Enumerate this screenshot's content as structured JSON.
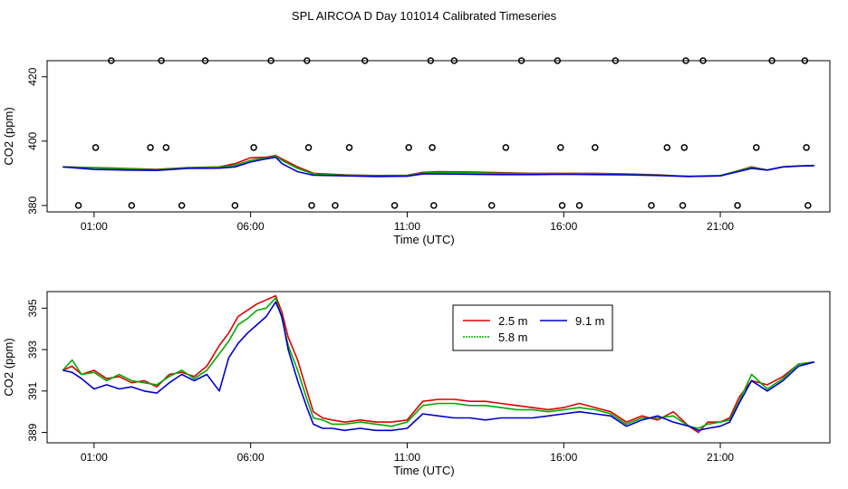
{
  "title": "SPL AIRCOA D  Day 101014  Calibrated Timeseries",
  "colors": {
    "s25": "#dd0000",
    "s58": "#00aa00",
    "s91": "#0000cc",
    "axis": "#000000",
    "points": "#000000"
  },
  "chart_data": [
    {
      "type": "line",
      "panel": "top",
      "xlabel": "Time (UTC)",
      "ylabel": "CO2 (ppm)",
      "xlim": [
        -0.5,
        24.5
      ],
      "ylim": [
        378,
        425
      ],
      "x_ticks": [
        1,
        6,
        11,
        16,
        21
      ],
      "x_tick_labels": [
        "01:00",
        "06:00",
        "11:00",
        "16:00",
        "21:00"
      ],
      "y_ticks": [
        380,
        400,
        420
      ],
      "y_tick_labels": [
        "380",
        "400",
        "420"
      ],
      "series": [
        {
          "name": "2.5 m",
          "color_key": "s25",
          "x": [
            0,
            1,
            2,
            3,
            4,
            5,
            5.5,
            6,
            6.5,
            6.8,
            7,
            7.5,
            8,
            9,
            10,
            11,
            11.5,
            12,
            13,
            14,
            15,
            16,
            17,
            18,
            19,
            20,
            21,
            22,
            22.5,
            23,
            23.5,
            24
          ],
          "values": [
            392,
            391.8,
            391.5,
            391.2,
            391.8,
            392,
            393,
            394.8,
            395,
            395.5,
            394.5,
            392,
            390,
            389.5,
            389.3,
            389.4,
            390.3,
            390.5,
            390.4,
            390.2,
            390,
            390,
            390,
            389.8,
            389.5,
            389,
            389.2,
            392,
            391,
            392,
            392.3,
            392.4
          ]
        },
        {
          "name": "5.8 m",
          "color_key": "s58",
          "x": [
            0,
            1,
            2,
            3,
            4,
            5,
            5.5,
            6,
            6.5,
            6.8,
            7,
            7.5,
            8,
            9,
            10,
            11,
            11.5,
            12,
            13,
            14,
            15,
            16,
            17,
            18,
            19,
            20,
            21,
            22,
            22.5,
            23,
            23.5,
            24
          ],
          "values": [
            392,
            391.7,
            391.4,
            391.1,
            391.7,
            391.9,
            392.5,
            394,
            394.8,
            395.3,
            394,
            391.5,
            389.8,
            389.4,
            389.2,
            389.3,
            390.1,
            390.3,
            390.2,
            390,
            389.9,
            389.9,
            389.9,
            389.7,
            389.4,
            389.1,
            389.3,
            391.8,
            391,
            392,
            392.3,
            392.4
          ]
        },
        {
          "name": "9.1 m",
          "color_key": "s91",
          "x": [
            0,
            1,
            2,
            3,
            4,
            5,
            5.5,
            6,
            6.5,
            6.8,
            7,
            7.5,
            8,
            9,
            10,
            11,
            11.5,
            12,
            13,
            14,
            15,
            16,
            17,
            18,
            19,
            20,
            21,
            22,
            22.5,
            23,
            23.5,
            24
          ],
          "values": [
            392,
            391.2,
            391,
            390.9,
            391.5,
            391.6,
            392,
            393.5,
            394.5,
            395,
            393,
            390.5,
            389.4,
            389.2,
            389,
            389.1,
            389.8,
            389.8,
            389.7,
            389.6,
            389.6,
            389.7,
            389.6,
            389.5,
            389.3,
            389,
            389.2,
            391.5,
            391,
            392,
            392.2,
            392.4
          ]
        }
      ],
      "flag_points": {
        "x": [
          0.5,
          1.05,
          1.55,
          2.2,
          2.8,
          3.15,
          3.3,
          3.8,
          4.55,
          5.5,
          6.1,
          6.65,
          7.8,
          7.85,
          7.95,
          8.7,
          9.15,
          9.65,
          10.6,
          11.05,
          11.75,
          11.8,
          11.85,
          12.5,
          13.7,
          14.15,
          14.65,
          15.8,
          15.9,
          15.95,
          16.5,
          17.0,
          17.65,
          18.8,
          19.3,
          19.8,
          19.85,
          19.9,
          20.45,
          21.55,
          22.15,
          22.65,
          23.7,
          23.75,
          23.8
        ],
        "values": [
          380,
          398,
          425,
          380,
          398,
          425,
          398,
          380,
          425,
          380,
          398,
          425,
          425,
          398,
          380,
          380,
          398,
          425,
          380,
          398,
          425,
          398,
          380,
          425,
          380,
          398,
          425,
          425,
          398,
          380,
          380,
          398,
          425,
          380,
          398,
          380,
          398,
          425,
          425,
          380,
          398,
          425,
          425,
          398,
          380
        ]
      }
    },
    {
      "type": "line",
      "panel": "bottom",
      "xlabel": "Time (UTC)",
      "ylabel": "CO2 (ppm)",
      "xlim": [
        -0.5,
        24.5
      ],
      "ylim": [
        388.5,
        395.8
      ],
      "x_ticks": [
        1,
        6,
        11,
        16,
        21
      ],
      "x_tick_labels": [
        "01:00",
        "06:00",
        "11:00",
        "16:00",
        "21:00"
      ],
      "y_ticks": [
        389,
        391,
        393,
        395
      ],
      "y_tick_labels": [
        "389",
        "391",
        "393",
        "395"
      ],
      "legend": {
        "position": "top-center",
        "entries": [
          "2.5 m",
          "9.1 m",
          "5.8 m"
        ]
      },
      "series": [
        {
          "name": "2.5 m",
          "color_key": "s25",
          "x": [
            0,
            0.3,
            0.6,
            1,
            1.4,
            1.8,
            2.2,
            2.6,
            3,
            3.4,
            3.8,
            4.2,
            4.6,
            5,
            5.3,
            5.6,
            5.9,
            6.2,
            6.5,
            6.8,
            7,
            7.2,
            7.5,
            7.8,
            8,
            8.3,
            8.6,
            9,
            9.5,
            10,
            10.5,
            11,
            11.5,
            12,
            12.5,
            13,
            13.5,
            14,
            14.5,
            15,
            15.5,
            16,
            16.5,
            17,
            17.5,
            18,
            18.5,
            19,
            19.5,
            20,
            20.3,
            20.6,
            21,
            21.3,
            21.6,
            22,
            22.5,
            23,
            23.5,
            24
          ],
          "values": [
            392,
            392.2,
            391.8,
            392,
            391.6,
            391.7,
            391.4,
            391.5,
            391.2,
            391.8,
            391.9,
            391.7,
            392.2,
            393.2,
            393.8,
            394.6,
            394.9,
            395.2,
            395.4,
            395.6,
            394.8,
            393.6,
            392.5,
            391,
            390,
            389.7,
            389.6,
            389.5,
            389.6,
            389.5,
            389.5,
            389.6,
            390.5,
            390.6,
            390.6,
            390.5,
            390.5,
            390.4,
            390.3,
            390.2,
            390.1,
            390.2,
            390.4,
            390.2,
            390,
            389.5,
            389.8,
            389.6,
            390,
            389.3,
            389.0,
            389.5,
            389.5,
            389.7,
            390.7,
            391.5,
            391.3,
            391.7,
            392.3,
            392.4
          ]
        },
        {
          "name": "5.8 m",
          "color_key": "s58",
          "x": [
            0,
            0.3,
            0.6,
            1,
            1.4,
            1.8,
            2.2,
            2.6,
            3,
            3.4,
            3.8,
            4.2,
            4.6,
            5,
            5.3,
            5.6,
            5.9,
            6.2,
            6.5,
            6.8,
            7,
            7.2,
            7.5,
            7.8,
            8,
            8.3,
            8.6,
            9,
            9.5,
            10,
            10.5,
            11,
            11.5,
            12,
            12.5,
            13,
            13.5,
            14,
            14.5,
            15,
            15.5,
            16,
            16.5,
            17,
            17.5,
            18,
            18.5,
            19,
            19.5,
            20,
            20.3,
            20.6,
            21,
            21.3,
            21.6,
            22,
            22.5,
            23,
            23.5,
            24
          ],
          "values": [
            392,
            392.5,
            391.8,
            391.9,
            391.5,
            391.8,
            391.5,
            391.4,
            391.3,
            391.7,
            392,
            391.6,
            392,
            392.8,
            393.4,
            394.2,
            394.5,
            394.9,
            395,
            395.5,
            394.5,
            393.2,
            392,
            390.6,
            389.7,
            389.6,
            389.4,
            389.4,
            389.5,
            389.4,
            389.3,
            389.5,
            390.3,
            390.4,
            390.4,
            390.3,
            390.3,
            390.2,
            390.1,
            390.1,
            390,
            390.1,
            390.2,
            390.1,
            389.9,
            389.4,
            389.7,
            389.7,
            389.8,
            389.3,
            389.2,
            389.4,
            389.5,
            389.6,
            390.5,
            391.8,
            391.1,
            391.6,
            392.3,
            392.4
          ]
        },
        {
          "name": "9.1 m",
          "color_key": "s91",
          "x": [
            0,
            0.3,
            0.6,
            1,
            1.4,
            1.8,
            2.2,
            2.6,
            3,
            3.4,
            3.8,
            4.2,
            4.6,
            5,
            5.3,
            5.6,
            5.9,
            6.2,
            6.5,
            6.8,
            7,
            7.2,
            7.5,
            7.8,
            8,
            8.3,
            8.6,
            9,
            9.5,
            10,
            10.5,
            11,
            11.5,
            12,
            12.5,
            13,
            13.5,
            14,
            14.5,
            15,
            15.5,
            16,
            16.5,
            17,
            17.5,
            18,
            18.5,
            19,
            19.5,
            20,
            20.3,
            20.6,
            21,
            21.3,
            21.6,
            22,
            22.5,
            23,
            23.5,
            24
          ],
          "values": [
            392,
            391.9,
            391.6,
            391.1,
            391.3,
            391.1,
            391.2,
            391,
            390.9,
            391.4,
            391.8,
            391.5,
            391.8,
            391,
            392.6,
            393.3,
            393.8,
            394.2,
            394.6,
            395.3,
            394.6,
            393,
            391.5,
            390.2,
            389.4,
            389.2,
            389.2,
            389.1,
            389.2,
            389.1,
            389.1,
            389.2,
            389.9,
            389.8,
            389.7,
            389.7,
            389.6,
            389.7,
            389.7,
            389.7,
            389.8,
            389.9,
            390.0,
            389.9,
            389.8,
            389.3,
            389.6,
            389.8,
            389.5,
            389.3,
            389.1,
            389.2,
            389.3,
            389.5,
            390.4,
            391.5,
            391.0,
            391.5,
            392.2,
            392.4
          ]
        }
      ]
    }
  ]
}
